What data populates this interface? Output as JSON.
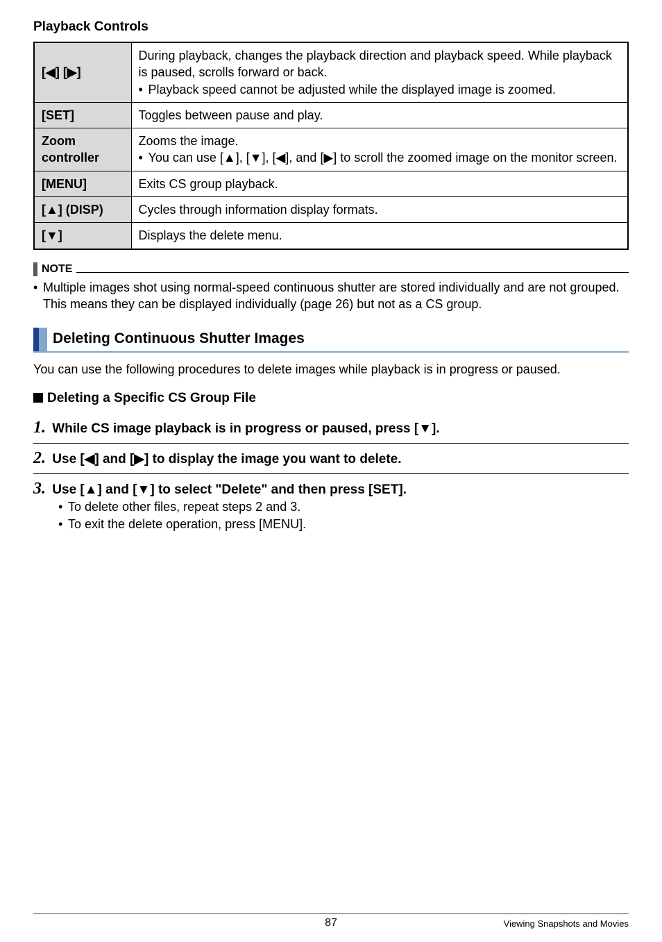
{
  "title": "Playback Controls",
  "table": {
    "rows": [
      {
        "key": "[◀] [▶]",
        "desc": "During playback, changes the playback direction and playback speed. While playback is paused, scrolls forward or back.",
        "bullets": [
          "Playback speed cannot be adjusted while the displayed image is zoomed."
        ]
      },
      {
        "key": "[SET]",
        "desc": "Toggles between pause and play."
      },
      {
        "key": "Zoom controller",
        "desc": "Zooms the image.",
        "bullets": [
          "You can use [▲], [▼], [◀], and [▶] to scroll the zoomed image on the monitor screen."
        ]
      },
      {
        "key": "[MENU]",
        "desc": "Exits CS group playback."
      },
      {
        "key": "[▲] (DISP)",
        "desc": "Cycles through information display formats."
      },
      {
        "key": "[▼]",
        "desc": "Displays the delete menu."
      }
    ]
  },
  "note": {
    "label": "NOTE",
    "items": [
      "Multiple images shot using normal-speed continuous shutter are stored individually and are not grouped. This means they can be displayed individually (page 26) but not as a CS group."
    ]
  },
  "subsection": "Deleting Continuous Shutter Images",
  "intro": "You can use the following procedures to delete images while playback is in progress or paused.",
  "subhead": "Deleting a Specific CS Group File",
  "steps": [
    {
      "num": "1.",
      "text": "While CS image playback is in progress or paused, press [▼]."
    },
    {
      "num": "2.",
      "text": "Use [◀] and [▶] to display the image you want to delete."
    },
    {
      "num": "3.",
      "text": "Use [▲] and [▼] to select \"Delete\" and then press [SET].",
      "sub": [
        "To delete other files, repeat steps 2 and 3.",
        "To exit the delete operation, press [MENU]."
      ]
    }
  ],
  "footer": {
    "page": "87",
    "section": "Viewing Snapshots and Movies"
  }
}
